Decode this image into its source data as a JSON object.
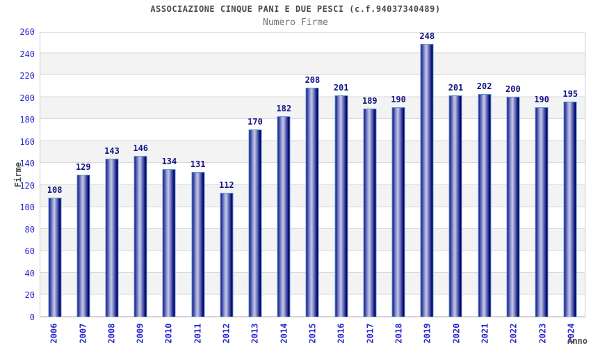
{
  "chart_data": {
    "type": "bar",
    "title": "ASSOCIAZIONE CINQUE PANI E DUE PESCI (c.f.94037340489)",
    "subtitle": "Numero Firme",
    "xlabel": "Anno",
    "ylabel": "Firme",
    "categories": [
      "2006",
      "2007",
      "2008",
      "2009",
      "2010",
      "2011",
      "2012",
      "2013",
      "2014",
      "2015",
      "2016",
      "2017",
      "2018",
      "2019",
      "2020",
      "2021",
      "2022",
      "2023",
      "2024"
    ],
    "values": [
      108,
      129,
      143,
      146,
      134,
      131,
      112,
      170,
      182,
      208,
      201,
      189,
      190,
      248,
      201,
      202,
      200,
      190,
      195
    ],
    "ylim": [
      0,
      260
    ],
    "ytick_step": 20,
    "yticks": [
      0,
      20,
      40,
      60,
      80,
      100,
      120,
      140,
      160,
      180,
      200,
      220,
      240,
      260
    ],
    "grid": "horizontal gridlines with alternating shaded bands",
    "legend_position": "none",
    "colors": {
      "bar_dark": "#05056e",
      "bar_light": "#c3c8e9",
      "bar_border": "#5b9bd5",
      "tick_label": "#2929cc",
      "value_label": "#131384",
      "title": "#4a4a4a",
      "subtitle": "#737373",
      "band_shade": "#f3f3f3",
      "gridline": "#d9d9d9",
      "plot_border": "#c9c9c9",
      "background": "#ffffff"
    }
  }
}
